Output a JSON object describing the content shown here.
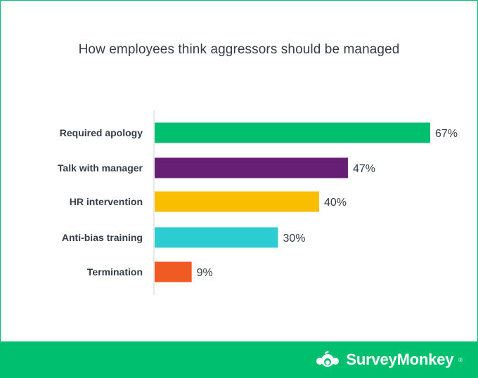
{
  "colors": {
    "frame_border": "#00bf6f",
    "footer_bg": "#00bf6f",
    "bars": [
      "#00bf6f",
      "#671e75",
      "#f9be00",
      "#2dccd3",
      "#f05b24"
    ]
  },
  "footer": {
    "brand_name": "SurveyMonkey",
    "brand_mark": "®",
    "logo_icon": "surveymonkey-logo-icon"
  },
  "chart_data": {
    "type": "bar",
    "orientation": "horizontal",
    "title": "How employees think aggressors should be managed",
    "categories": [
      "Required apology",
      "Talk with manager",
      "HR intervention",
      "Anti-bias training",
      "Termination"
    ],
    "values": [
      67,
      47,
      40,
      30,
      9
    ],
    "value_labels": [
      "67%",
      "47%",
      "40%",
      "30%",
      "9%"
    ],
    "unit": "%",
    "xlim": [
      0,
      100
    ],
    "grid": false,
    "legend": "none"
  }
}
